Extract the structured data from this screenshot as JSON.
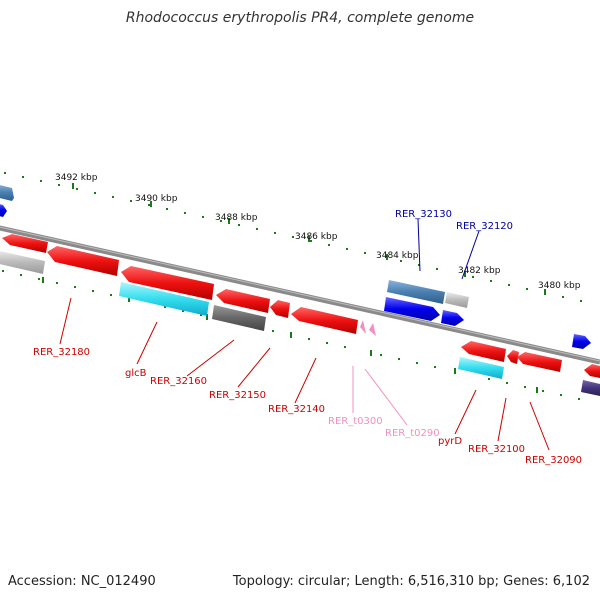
{
  "title": "Rhodococcus erythropolis PR4, complete genome",
  "footer": {
    "accession": "Accession: NC_012490",
    "summary": "Topology: circular; Length: 6,516,310 bp; Genes: 6,102"
  },
  "ruler": {
    "labels": [
      "3492 kbp",
      "3490 kbp",
      "3488 kbp",
      "3486 kbp",
      "3484 kbp",
      "3482 kbp",
      "3480 kbp"
    ]
  },
  "genes": [
    {
      "label": "RER_32180",
      "color": "#cc0000"
    },
    {
      "label": "glcB",
      "color": "#cc0000"
    },
    {
      "label": "RER_32160",
      "color": "#cc0000"
    },
    {
      "label": "RER_32150",
      "color": "#cc0000"
    },
    {
      "label": "RER_32140",
      "color": "#cc0000"
    },
    {
      "label": "RER_t0300",
      "color": "#f090c0"
    },
    {
      "label": "RER_t0290",
      "color": "#f090c0"
    },
    {
      "label": "pyrD",
      "color": "#cc0000"
    },
    {
      "label": "RER_32100",
      "color": "#cc0000"
    },
    {
      "label": "RER_32090",
      "color": "#cc0000"
    },
    {
      "label": "RER_32130",
      "color": "#000099"
    },
    {
      "label": "RER_32120",
      "color": "#000099"
    }
  ],
  "colors": {
    "backbone": "#888888",
    "ruler_ticks": "#1a7a1a",
    "cds_red": "#ee1111",
    "rrna_cyan": "#33ddee",
    "gray_feature": "#666666",
    "light_gray_feature": "#bbbbbb",
    "steel_blue": "#4a7fb0",
    "blue_feature": "#0000ee",
    "trna_pink": "#f090c0",
    "purple_feature": "#44337a"
  }
}
